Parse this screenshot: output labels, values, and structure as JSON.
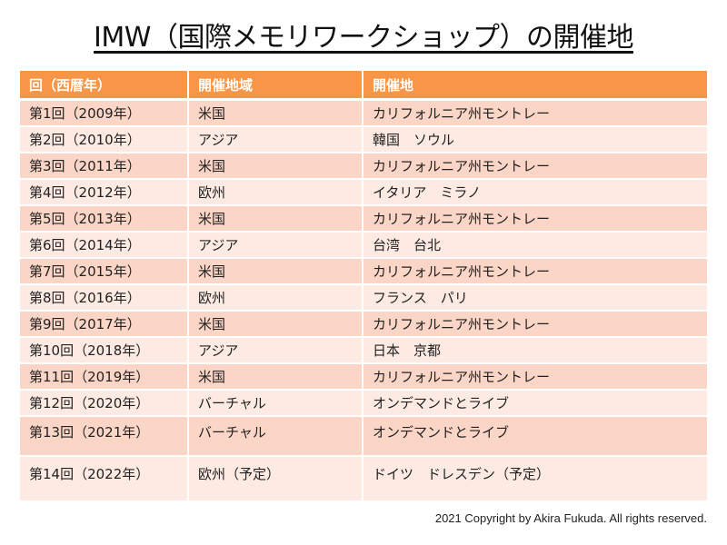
{
  "title": "IMW（国際メモリワークショップ）の開催地",
  "table": {
    "headers": [
      "回（西暦年）",
      "開催地域",
      "開催地"
    ],
    "rows": [
      {
        "session": "第1回（2009年）",
        "region": "米国",
        "venue": "カリフォルニア州モントレー"
      },
      {
        "session": "第2回（2010年）",
        "region": "アジア",
        "venue": "韓国　ソウル"
      },
      {
        "session": "第3回（2011年）",
        "region": "米国",
        "venue": "カリフォルニア州モントレー"
      },
      {
        "session": "第4回（2012年）",
        "region": "欧州",
        "venue": "イタリア　ミラノ"
      },
      {
        "session": "第5回（2013年）",
        "region": "米国",
        "venue": "カリフォルニア州モントレー"
      },
      {
        "session": "第6回（2014年）",
        "region": "アジア",
        "venue": "台湾　台北"
      },
      {
        "session": "第7回（2015年）",
        "region": "米国",
        "venue": "カリフォルニア州モントレー"
      },
      {
        "session": "第8回（2016年）",
        "region": "欧州",
        "venue": "フランス　パリ"
      },
      {
        "session": "第9回（2017年）",
        "region": "米国",
        "venue": "カリフォルニア州モントレー"
      },
      {
        "session": "第10回（2018年）",
        "region": "アジア",
        "venue": "日本　京都"
      },
      {
        "session": "第11回（2019年）",
        "region": "米国",
        "venue": "カリフォルニア州モントレー"
      },
      {
        "session": "第12回（2020年）",
        "region": "バーチャル",
        "venue": "オンデマンドとライブ"
      },
      {
        "session": "第13回（2021年）",
        "region": "バーチャル",
        "venue": "オンデマンドとライブ"
      },
      {
        "session": "第14回（2022年）",
        "region": "欧州（予定）",
        "venue": "ドイツ　ドレスデン（予定）"
      }
    ]
  },
  "colors": {
    "header_bg": "#f79646",
    "row_odd_bg": "#fbd5c6",
    "row_even_bg": "#fdeae3"
  },
  "footer": "2021 Copyright by Akira Fukuda. All rights reserved."
}
